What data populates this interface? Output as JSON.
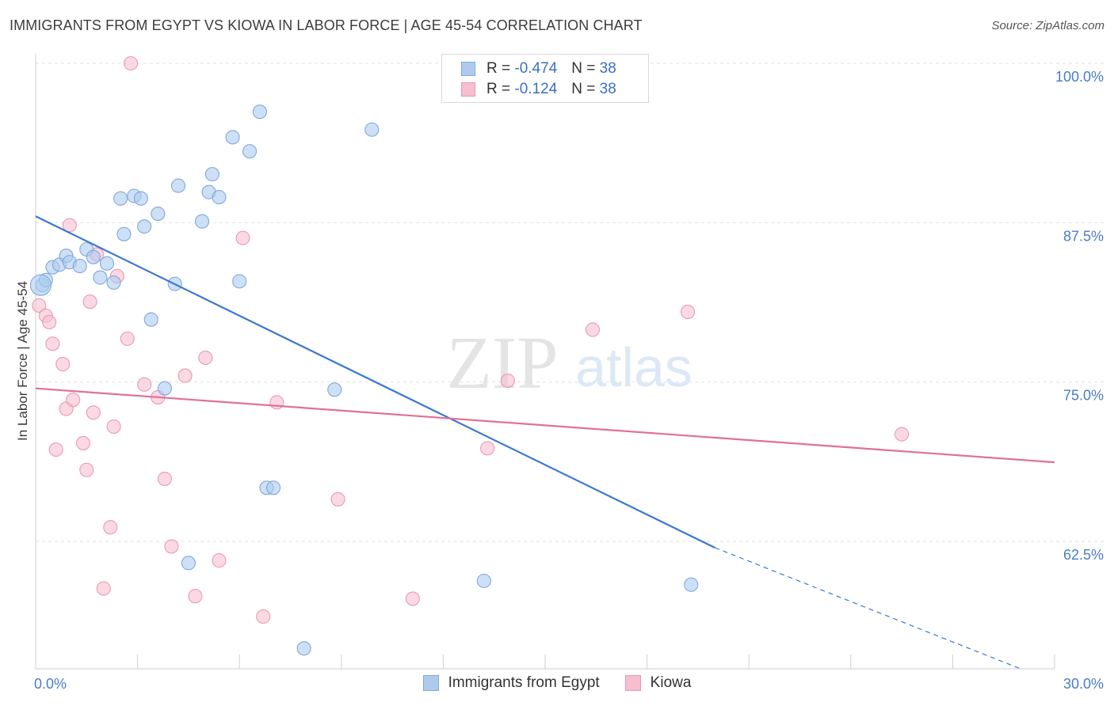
{
  "title": "IMMIGRANTS FROM EGYPT VS KIOWA IN LABOR FORCE | AGE 45-54 CORRELATION CHART",
  "source": "Source: ZipAtlas.com",
  "watermark": {
    "zip": "ZIP",
    "atlas": "atlas"
  },
  "legend": {
    "series1": {
      "r_label": "R =",
      "r_value": "-0.474",
      "n_label": "N =",
      "n_value": "38"
    },
    "series2": {
      "r_label": "R =",
      "r_value": "-0.124",
      "n_label": "N =",
      "n_value": "38"
    }
  },
  "bottom_legend": {
    "series1": "Immigrants from Egypt",
    "series2": "Kiowa"
  },
  "colors": {
    "blue_fill": "#aecbee",
    "blue_stroke": "#7fa8dc",
    "blue_line": "#3a78d0",
    "pink_fill": "#f6bfd0",
    "pink_stroke": "#eb98b3",
    "pink_line": "#e0709a",
    "grid": "#e2e2e2",
    "tick_text": "#4a7cc4"
  },
  "chart_data": {
    "type": "scatter",
    "ylabel": "In Labor Force | Age 45-54",
    "xlim": [
      0,
      30
    ],
    "ylim": [
      52.5,
      100
    ],
    "x_tick_labels": [
      {
        "value": 0,
        "label": "0.0%"
      },
      {
        "value": 30,
        "label": "30.0%"
      }
    ],
    "y_tick_labels": [
      {
        "value": 100,
        "label": "100.0%"
      },
      {
        "value": 87.5,
        "label": "87.5%"
      },
      {
        "value": 75,
        "label": "75.0%"
      },
      {
        "value": 62.5,
        "label": "62.5%"
      }
    ],
    "series": [
      {
        "name": "Immigrants from Egypt",
        "points": [
          [
            0.2,
            82.6
          ],
          [
            0.3,
            83.0
          ],
          [
            0.5,
            84.0
          ],
          [
            0.7,
            84.2
          ],
          [
            0.9,
            84.9
          ],
          [
            1.0,
            84.4
          ],
          [
            1.3,
            84.1
          ],
          [
            1.5,
            85.4
          ],
          [
            1.7,
            84.8
          ],
          [
            1.9,
            83.2
          ],
          [
            2.1,
            84.3
          ],
          [
            2.3,
            82.8
          ],
          [
            2.5,
            89.4
          ],
          [
            2.6,
            86.6
          ],
          [
            2.9,
            89.6
          ],
          [
            3.1,
            89.4
          ],
          [
            3.2,
            87.2
          ],
          [
            3.4,
            79.9
          ],
          [
            3.6,
            88.2
          ],
          [
            3.8,
            74.5
          ],
          [
            4.1,
            82.7
          ],
          [
            4.2,
            90.4
          ],
          [
            4.5,
            60.8
          ],
          [
            4.9,
            87.6
          ],
          [
            5.1,
            89.9
          ],
          [
            5.2,
            91.3
          ],
          [
            5.4,
            89.5
          ],
          [
            5.8,
            94.2
          ],
          [
            6.0,
            82.9
          ],
          [
            6.3,
            93.1
          ],
          [
            6.6,
            96.2
          ],
          [
            6.8,
            66.7
          ],
          [
            7.0,
            66.7
          ],
          [
            7.9,
            54.1
          ],
          [
            8.8,
            74.4
          ],
          [
            9.9,
            94.8
          ],
          [
            13.2,
            59.4
          ],
          [
            19.3,
            59.1
          ]
        ],
        "trend": {
          "x0": 0,
          "y0": 88.0,
          "x1": 20.0,
          "y1": 62.0,
          "dash_to_x": 29.0,
          "dash_to_y": 50.4
        }
      },
      {
        "name": "Kiowa",
        "points": [
          [
            0.1,
            81.0
          ],
          [
            0.3,
            80.2
          ],
          [
            0.4,
            79.7
          ],
          [
            0.5,
            78.0
          ],
          [
            0.6,
            69.7
          ],
          [
            0.8,
            76.4
          ],
          [
            0.9,
            72.9
          ],
          [
            1.0,
            87.3
          ],
          [
            1.1,
            73.6
          ],
          [
            1.4,
            70.2
          ],
          [
            1.5,
            68.1
          ],
          [
            1.6,
            81.3
          ],
          [
            1.7,
            72.6
          ],
          [
            1.8,
            85.0
          ],
          [
            2.0,
            58.8
          ],
          [
            2.2,
            63.6
          ],
          [
            2.3,
            71.5
          ],
          [
            2.4,
            83.3
          ],
          [
            2.7,
            78.4
          ],
          [
            2.8,
            100.0
          ],
          [
            3.2,
            74.8
          ],
          [
            3.6,
            73.8
          ],
          [
            3.8,
            67.4
          ],
          [
            4.0,
            62.1
          ],
          [
            4.4,
            75.5
          ],
          [
            4.7,
            58.2
          ],
          [
            5.0,
            76.9
          ],
          [
            5.4,
            61.0
          ],
          [
            6.1,
            86.3
          ],
          [
            6.7,
            56.6
          ],
          [
            7.1,
            73.4
          ],
          [
            8.9,
            65.8
          ],
          [
            11.1,
            58.0
          ],
          [
            13.3,
            69.8
          ],
          [
            13.9,
            75.1
          ],
          [
            16.4,
            79.1
          ],
          [
            19.2,
            80.5
          ],
          [
            25.5,
            70.9
          ]
        ],
        "trend": {
          "x0": 0,
          "y0": 74.5,
          "x1": 30.0,
          "y1": 68.7
        }
      }
    ]
  }
}
